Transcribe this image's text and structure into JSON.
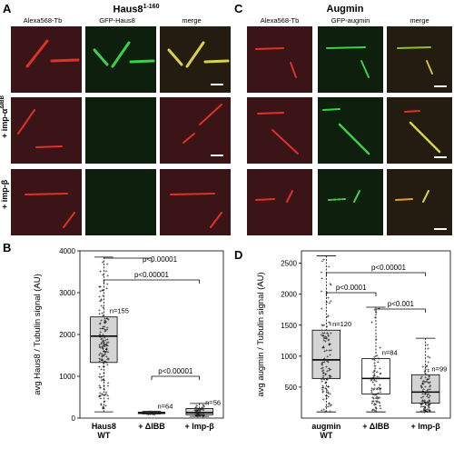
{
  "panels": {
    "A": {
      "letter": "A",
      "title": "Haus8",
      "title_sup": "1-160",
      "columns": [
        "Alexa568-Tb",
        "GFP-Haus8",
        "merge"
      ],
      "rows": [
        "",
        "+ imp-α",
        "+ imp-β"
      ],
      "row_sup": [
        "",
        "ΔIBB",
        ""
      ]
    },
    "C": {
      "letter": "C",
      "title": "Augmin",
      "columns": [
        "Alexa568-Tb",
        "GFP-augmin",
        "merge"
      ]
    },
    "B": {
      "letter": "B"
    },
    "D": {
      "letter": "D"
    }
  },
  "colors": {
    "red": "#e0302c",
    "green": "#3cd048",
    "yellow": "#d8d24a",
    "tile_bg": "#3a1416",
    "tile_bg_green": "#0e1f0e",
    "scale_bar": "#ffffff",
    "box_fill": "#d4d4d4"
  },
  "chart_data": [
    {
      "panel": "B",
      "type": "box",
      "ylabel": "avg Haus8  / Tubulin signal (AU)",
      "ylim": [
        0,
        4000
      ],
      "yticks": [
        0,
        1000,
        2000,
        3000,
        4000
      ],
      "categories": [
        "Haus8\nWT",
        "+ ΔIBB",
        "+ Imp-β"
      ],
      "boxes": [
        {
          "category": "Haus8 WT",
          "q1": 1330,
          "median": 1960,
          "q3": 2420,
          "whisker_low": 150,
          "whisker_high": 3850,
          "n_label": "n=155",
          "filled": true
        },
        {
          "category": "+ ΔIBB",
          "q1": 110,
          "median": 125,
          "q3": 140,
          "whisker_low": 100,
          "whisker_high": 160,
          "n_label": "n=64",
          "filled": true
        },
        {
          "category": "+ Imp-β",
          "q1": 80,
          "median": 130,
          "q3": 230,
          "whisker_low": 40,
          "whisker_high": 350,
          "n_label": "n=56",
          "filled": true
        }
      ],
      "comparisons": [
        {
          "from": 0,
          "to": 1,
          "label": "p<0.00001"
        },
        {
          "from": 0,
          "to": 2,
          "label": "p<0.00001"
        },
        {
          "from": 1,
          "to": 2,
          "label": "p<0.00001"
        }
      ]
    },
    {
      "panel": "D",
      "type": "box",
      "ylabel": "avg augmin / Tubulin signal (AU)",
      "ylim": [
        0,
        2700
      ],
      "yticks": [
        500,
        1000,
        1500,
        2000,
        2500
      ],
      "categories": [
        "augmin\nWT",
        "+ ΔIBB",
        "+ Imp-β"
      ],
      "boxes": [
        {
          "category": "augmin WT",
          "q1": 640,
          "median": 940,
          "q3": 1420,
          "whisker_low": 100,
          "whisker_high": 2620,
          "n_label": "n=120",
          "filled": true
        },
        {
          "category": "+ ΔIBB",
          "q1": 390,
          "median": 640,
          "q3": 960,
          "whisker_low": 100,
          "whisker_high": 1790,
          "n_label": "n=84",
          "filled": false
        },
        {
          "category": "+ Imp-β",
          "q1": 240,
          "median": 420,
          "q3": 700,
          "whisker_low": 100,
          "whisker_high": 1290,
          "n_label": "n=99",
          "filled": true
        }
      ],
      "comparisons": [
        {
          "from": 0,
          "to": 2,
          "label": "p<0.00001"
        },
        {
          "from": 0,
          "to": 1,
          "label": "p<0.0001"
        },
        {
          "from": 1,
          "to": 2,
          "label": "p<0.001"
        }
      ]
    }
  ]
}
